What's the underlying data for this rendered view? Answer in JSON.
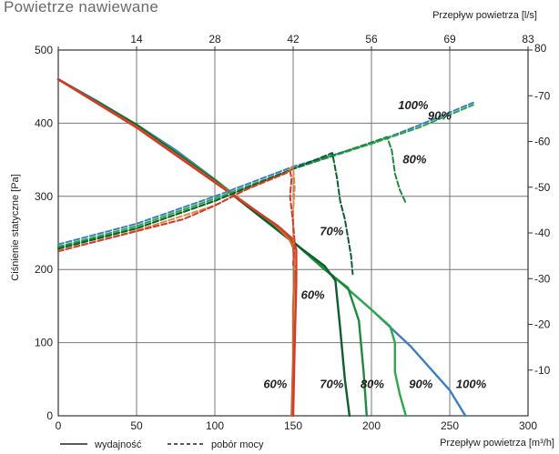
{
  "page_title": "Powietrze nawiewane",
  "chart_data": {
    "type": "line",
    "title": "Powietrze nawiewane",
    "xlabel": "Przepływ powietrza [m³/h]",
    "x2label": "Przepływ powietrza [l/s]",
    "ylabel": "Ciśnienie statyczne [Pa]",
    "y2label": "",
    "xlim": [
      0,
      300
    ],
    "ylim": [
      0,
      500
    ],
    "y2lim": [
      0,
      80
    ],
    "grid": true,
    "x_ticks": [
      0,
      50,
      100,
      150,
      200,
      250,
      300
    ],
    "x_tick_labels": [
      "0",
      "50",
      "100",
      "150",
      "200",
      "250",
      "300"
    ],
    "x2_ticks": [
      0,
      14,
      28,
      42,
      56,
      69,
      83
    ],
    "x2_tick_labels": [
      "",
      "14",
      "28",
      "42",
      "56",
      "69",
      "83"
    ],
    "y_ticks": [
      0,
      100,
      200,
      300,
      400,
      500
    ],
    "y_tick_labels": [
      "0",
      "100",
      "200",
      "300",
      "400",
      "500"
    ],
    "y2_ticks": [
      10,
      20,
      30,
      40,
      50,
      60,
      70,
      80
    ],
    "y2_tick_labels": [
      "10",
      "20",
      "30",
      "40",
      "50",
      "60",
      "70",
      "80"
    ],
    "legend": [
      {
        "label": "wydajność",
        "style": "solid"
      },
      {
        "label": "pobór mocy",
        "style": "dashed"
      }
    ],
    "series": [
      {
        "kind": "flow",
        "color": "#3b7fc4",
        "points": [
          [
            0,
            460
          ],
          [
            25,
            430
          ],
          [
            50,
            398
          ],
          [
            75,
            363
          ],
          [
            100,
            323
          ],
          [
            125,
            280
          ],
          [
            150,
            238
          ],
          [
            175,
            192
          ],
          [
            200,
            145
          ],
          [
            225,
            95
          ],
          [
            250,
            35
          ],
          [
            260,
            0
          ]
        ]
      },
      {
        "kind": "flow",
        "color": "#2ea84a",
        "points": [
          [
            0,
            460
          ],
          [
            50,
            398
          ],
          [
            100,
            323
          ],
          [
            150,
            238
          ],
          [
            175,
            192
          ],
          [
            200,
            145
          ],
          [
            212,
            122
          ],
          [
            215,
            100
          ],
          [
            215,
            60
          ],
          [
            218,
            30
          ],
          [
            222,
            0
          ]
        ]
      },
      {
        "kind": "flow",
        "color": "#1f8a3c",
        "points": [
          [
            0,
            460
          ],
          [
            50,
            398
          ],
          [
            100,
            322
          ],
          [
            150,
            238
          ],
          [
            170,
            200
          ],
          [
            185,
            175
          ],
          [
            192,
            130
          ],
          [
            195,
            60
          ],
          [
            197,
            0
          ]
        ]
      },
      {
        "kind": "flow",
        "color": "#0c5e2c",
        "points": [
          [
            0,
            460
          ],
          [
            50,
            397
          ],
          [
            100,
            321
          ],
          [
            150,
            237
          ],
          [
            170,
            205
          ],
          [
            177,
            185
          ],
          [
            180,
            120
          ],
          [
            183,
            50
          ],
          [
            186,
            0
          ]
        ]
      },
      {
        "kind": "flow",
        "color": "#c96a2a",
        "points": [
          [
            0,
            460
          ],
          [
            50,
            395
          ],
          [
            100,
            320
          ],
          [
            120,
            290
          ],
          [
            138,
            262
          ],
          [
            148,
            240
          ],
          [
            150,
            230
          ],
          [
            151,
            200
          ],
          [
            150,
            150
          ],
          [
            150,
            80
          ],
          [
            149,
            0
          ]
        ]
      },
      {
        "kind": "flow",
        "color": "#d43a2a",
        "points": [
          [
            0,
            460
          ],
          [
            50,
            394
          ],
          [
            100,
            319
          ],
          [
            120,
            289
          ],
          [
            140,
            260
          ],
          [
            149,
            243
          ],
          [
            152,
            228
          ],
          [
            152,
            180
          ],
          [
            151,
            100
          ],
          [
            150,
            0
          ]
        ]
      },
      {
        "kind": "power",
        "color": "#3b7fc4",
        "points": [
          [
            0,
            37.5
          ],
          [
            50,
            42
          ],
          [
            100,
            48
          ],
          [
            150,
            54.5
          ],
          [
            200,
            59.5
          ],
          [
            230,
            63.5
          ],
          [
            265,
            68.5
          ]
        ]
      },
      {
        "kind": "power",
        "color": "#2ea84a",
        "points": [
          [
            0,
            37
          ],
          [
            50,
            41.5
          ],
          [
            100,
            47.5
          ],
          [
            150,
            54
          ],
          [
            200,
            59.5
          ],
          [
            230,
            63
          ],
          [
            265,
            68
          ]
        ]
      },
      {
        "kind": "power",
        "color": "#1f8a3c",
        "points": [
          [
            0,
            36.8
          ],
          [
            50,
            41
          ],
          [
            100,
            47
          ],
          [
            150,
            54
          ],
          [
            200,
            59.8
          ],
          [
            210,
            61
          ],
          [
            213,
            58
          ],
          [
            215,
            53
          ],
          [
            218,
            49.5
          ],
          [
            222,
            46.5
          ]
        ]
      },
      {
        "kind": "power",
        "color": "#0c5e2c",
        "points": [
          [
            0,
            36.5
          ],
          [
            50,
            41
          ],
          [
            100,
            47
          ],
          [
            150,
            54
          ],
          [
            175,
            57.5
          ],
          [
            178,
            52
          ],
          [
            180,
            47
          ],
          [
            183,
            43
          ],
          [
            186,
            37
          ],
          [
            187,
            35
          ],
          [
            188,
            31
          ]
        ]
      },
      {
        "kind": "power",
        "color": "#e2883a",
        "points": [
          [
            0,
            36
          ],
          [
            50,
            40.5
          ],
          [
            100,
            46
          ],
          [
            120,
            49.5
          ],
          [
            145,
            53
          ],
          [
            150,
            54.5
          ],
          [
            151,
            50
          ],
          [
            150,
            45
          ],
          [
            150,
            40
          ],
          [
            151,
            35
          ],
          [
            151,
            32
          ]
        ]
      },
      {
        "kind": "power",
        "color": "#d43a2a",
        "points": [
          [
            0,
            36
          ],
          [
            40,
            39.5
          ],
          [
            80,
            43
          ],
          [
            100,
            46
          ],
          [
            120,
            49.5
          ],
          [
            148,
            53.5
          ],
          [
            149,
            52
          ],
          [
            148,
            48
          ],
          [
            150,
            42
          ],
          [
            151,
            38
          ],
          [
            150,
            33
          ]
        ]
      }
    ],
    "annotations": [
      {
        "text": "100%",
        "x": 217,
        "y": 419
      },
      {
        "text": "90%",
        "x": 236,
        "y": 405
      },
      {
        "text": "80%",
        "x": 220,
        "y": 345
      },
      {
        "text": "70%",
        "x": 167,
        "y": 247
      },
      {
        "text": "60%",
        "x": 155,
        "y": 160
      },
      {
        "text": "60%",
        "x": 131,
        "y": 38
      },
      {
        "text": "70%",
        "x": 167,
        "y": 38
      },
      {
        "text": "80%",
        "x": 193,
        "y": 38
      },
      {
        "text": "90%",
        "x": 224,
        "y": 38
      },
      {
        "text": "100%",
        "x": 254,
        "y": 38
      }
    ]
  }
}
